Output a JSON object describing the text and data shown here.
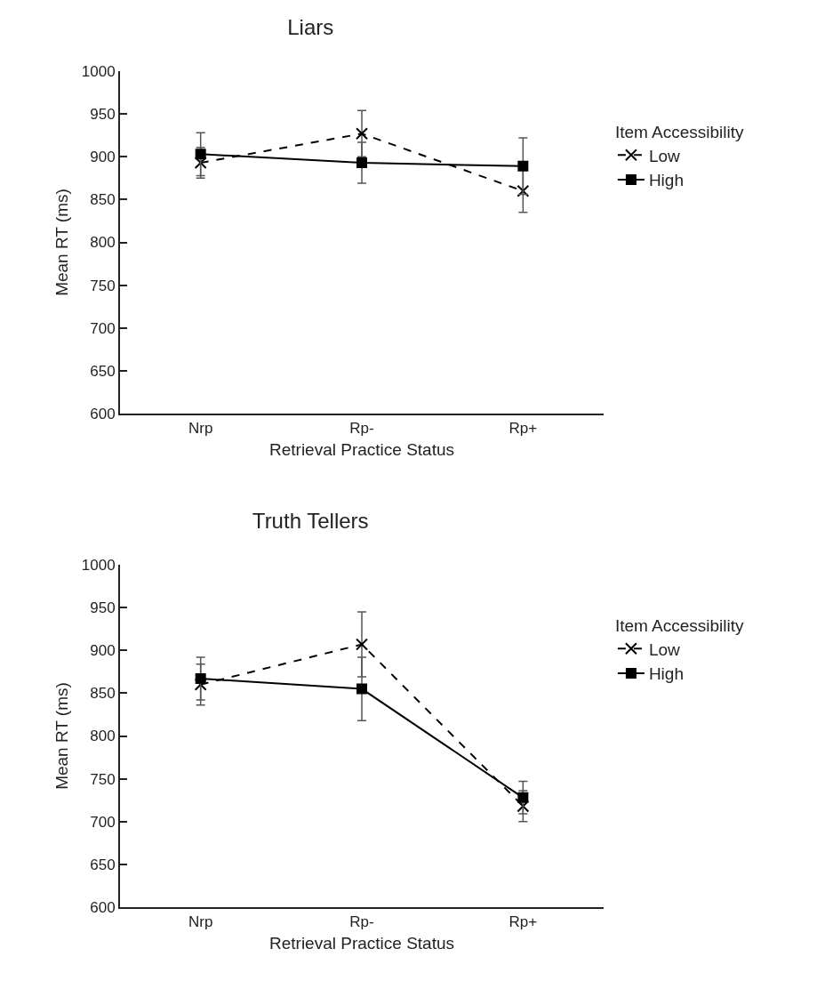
{
  "chart_data": [
    {
      "type": "line",
      "title": "Liars",
      "xlabel": "Retrieval Practice Status",
      "ylabel": "Mean RT (ms)",
      "legend_title": "Item Accessibility",
      "categories": [
        "Nrp",
        "Rp-",
        "Rp+"
      ],
      "ylim": [
        600,
        1000
      ],
      "yticks": [
        600,
        650,
        700,
        750,
        800,
        850,
        900,
        950,
        1000
      ],
      "grid": false,
      "legend": "right",
      "series": [
        {
          "name": "Low",
          "color": "#000000",
          "marker": "cross",
          "line_style": "dashed",
          "values": [
            893,
            927,
            860
          ],
          "errors": [
            18,
            27,
            25
          ]
        },
        {
          "name": "High",
          "color": "#000000",
          "marker": "square",
          "line_style": "solid",
          "values": [
            903,
            893,
            889
          ],
          "errors": [
            25,
            24,
            33
          ]
        }
      ]
    },
    {
      "type": "line",
      "title": "Truth Tellers",
      "xlabel": "Retrieval Practice Status",
      "ylabel": "Mean RT (ms)",
      "legend_title": "Item Accessibility",
      "categories": [
        "Nrp",
        "Rp-",
        "Rp+"
      ],
      "ylim": [
        600,
        1000
      ],
      "yticks": [
        600,
        650,
        700,
        750,
        800,
        850,
        900,
        950,
        1000
      ],
      "grid": false,
      "legend": "right",
      "series": [
        {
          "name": "Low",
          "color": "#000000",
          "marker": "cross",
          "line_style": "dashed",
          "values": [
            860,
            907,
            718
          ],
          "errors": [
            24,
            38,
            18
          ]
        },
        {
          "name": "High",
          "color": "#000000",
          "marker": "square",
          "line_style": "solid",
          "values": [
            867,
            855,
            728
          ],
          "errors": [
            25,
            37,
            19
          ]
        }
      ]
    }
  ]
}
